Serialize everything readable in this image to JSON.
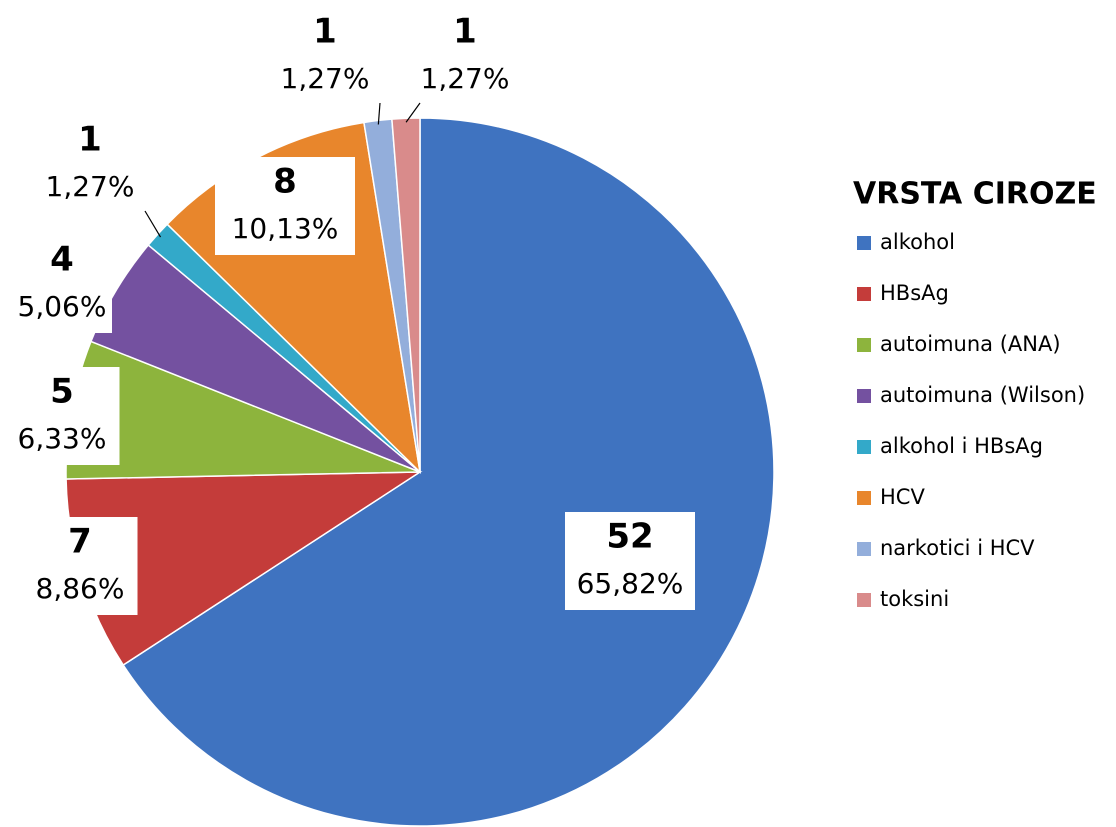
{
  "chart_data": {
    "type": "pie",
    "legend_title": "VRSTA CIROZE",
    "categories": [
      "alkohol",
      "HBsAg",
      "autoimuna (ANA)",
      "autoimuna (Wilson)",
      "alkohol i HBsAg",
      "HCV",
      "narkotici i HCV",
      "toksini"
    ],
    "values": [
      52,
      7,
      5,
      4,
      1,
      8,
      1,
      1
    ],
    "percent_labels": [
      "65,82%",
      "8,86%",
      "6,33%",
      "5,06%",
      "1,27%",
      "10,13%",
      "1,27%",
      "1,27%"
    ],
    "colors": [
      "#3f73c0",
      "#c43c3a",
      "#8db43d",
      "#7451a0",
      "#33a9c9",
      "#e8862c",
      "#93aedb",
      "#d98b8b"
    ],
    "legend": "right"
  }
}
